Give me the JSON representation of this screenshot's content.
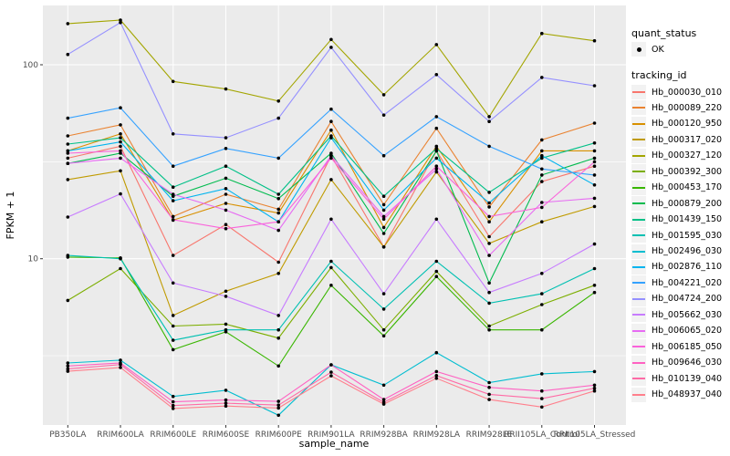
{
  "figure": {
    "panel_bg": "#EBEBEB",
    "grid_color": "#FFFFFF",
    "axis_text_color": "#4D4D4D",
    "title_text_color": "#000000",
    "tick_mark_color": "#333333",
    "legend_key_bg": "#F2F2F2",
    "marker_color": "#000000"
  },
  "chart_data": {
    "type": "line",
    "xlabel": "sample_name",
    "ylabel": "FPKM + 1",
    "y_scale": "log10",
    "y_tick_labels": [
      "100",
      "10"
    ],
    "y_tick_values": [
      100,
      10
    ],
    "y_minor_gridline_values": [
      31.62,
      3.162
    ],
    "ylim": [
      1.4,
      200
    ],
    "grid": "on",
    "legend_position": "right",
    "point_marker": "black-point",
    "categories": [
      "PB350LA",
      "RRIM600LA",
      "RRIM600LE",
      "RRIM600SE",
      "RRIM600PE",
      "RRIM901LA",
      "RRIM928BA",
      "RRIM928LA",
      "RRIM928LE",
      "RRII105LA_Control",
      "RRII105LA_Stressed"
    ],
    "legend": {
      "quant_status_title": "quant_status",
      "quant_ok_label": "OK",
      "tracking_title": "tracking_id"
    },
    "series": [
      {
        "name": "Hb_000030_010",
        "color": "#F8766D",
        "values": [
          33,
          38,
          10.4,
          15,
          9.6,
          34,
          11.5,
          36,
          13,
          25,
          30
        ]
      },
      {
        "name": "Hb_000089_220",
        "color": "#EA8331",
        "values": [
          43,
          49,
          16.5,
          21.5,
          18,
          51,
          19,
          47,
          18.5,
          41,
          50
        ]
      },
      {
        "name": "Hb_000120_950",
        "color": "#D89000",
        "values": [
          36,
          44,
          15.8,
          19.3,
          17.2,
          46,
          14.5,
          38,
          15.5,
          36,
          36
        ]
      },
      {
        "name": "Hb_000317_020",
        "color": "#C09B00",
        "values": [
          25.6,
          28.4,
          5.1,
          6.8,
          8.4,
          25.6,
          11.5,
          28,
          12,
          15.5,
          18.6
        ]
      },
      {
        "name": "Hb_000327_120",
        "color": "#A3A500",
        "values": [
          163,
          170,
          82,
          75,
          65,
          135,
          70,
          127,
          54,
          145,
          133
        ]
      },
      {
        "name": "Hb_000392_300",
        "color": "#7CAE00",
        "values": [
          6.1,
          8.9,
          4.5,
          4.6,
          3.9,
          9.0,
          4.3,
          8.6,
          4.5,
          5.8,
          7.3
        ]
      },
      {
        "name": "Hb_000453_170",
        "color": "#39B600",
        "values": [
          10.2,
          10.1,
          3.4,
          4.2,
          2.8,
          7.3,
          4.0,
          8.1,
          4.3,
          4.3,
          6.7
        ]
      },
      {
        "name": "Hb_000879_200",
        "color": "#00BB4E",
        "values": [
          31,
          35,
          21,
          26,
          20.4,
          35,
          13.5,
          36,
          7.5,
          27,
          33
        ]
      },
      {
        "name": "Hb_001439_150",
        "color": "#00C087",
        "values": [
          39,
          42,
          23.4,
          30,
          21.5,
          43,
          21,
          37,
          22,
          33,
          39.5
        ]
      },
      {
        "name": "Hb_001595_030",
        "color": "#00C0B2",
        "values": [
          10.4,
          10.0,
          3.8,
          4.3,
          4.3,
          9.7,
          5.5,
          9.7,
          5.9,
          6.6,
          8.9
        ]
      },
      {
        "name": "Hb_002496_030",
        "color": "#00BDD0",
        "values": [
          2.9,
          3.0,
          1.95,
          2.1,
          1.56,
          2.84,
          2.23,
          3.28,
          2.3,
          2.55,
          2.62
        ]
      },
      {
        "name": "Hb_002876_110",
        "color": "#00B4EF",
        "values": [
          36,
          40,
          19.9,
          23,
          15.5,
          42,
          17.8,
          33,
          19.4,
          34,
          24
        ]
      },
      {
        "name": "Hb_004221_020",
        "color": "#35A2FF",
        "values": [
          53,
          60,
          30,
          37,
          33,
          59,
          34,
          54,
          38,
          29,
          27
        ]
      },
      {
        "name": "Hb_004724_200",
        "color": "#9590FF",
        "values": [
          113,
          165,
          44,
          42,
          53,
          123,
          55,
          89,
          51,
          86,
          78
        ]
      },
      {
        "name": "Hb_005662_030",
        "color": "#C77CFF",
        "values": [
          16.4,
          21.6,
          7.5,
          6.4,
          5.1,
          16,
          6.6,
          16,
          6.7,
          8.4,
          11.9
        ]
      },
      {
        "name": "Hb_006065_020",
        "color": "#E76BF3",
        "values": [
          31,
          33,
          21.5,
          17.8,
          14.0,
          34,
          16.5,
          29,
          10.4,
          19.5,
          20.5
        ]
      },
      {
        "name": "Hb_006185_050",
        "color": "#FA62DB",
        "values": [
          35,
          36,
          15.9,
          14.3,
          15.5,
          33,
          16,
          30,
          16.5,
          18.4,
          31.6
        ]
      },
      {
        "name": "Hb_009646_030",
        "color": "#FF61C2",
        "values": [
          2.8,
          2.9,
          1.83,
          1.87,
          1.84,
          2.84,
          1.88,
          2.62,
          2.17,
          2.08,
          2.23
        ]
      },
      {
        "name": "Hb_010139_040",
        "color": "#FF6BA6",
        "values": [
          2.7,
          2.85,
          1.75,
          1.8,
          1.76,
          2.6,
          1.82,
          2.5,
          2.0,
          1.9,
          2.15
        ]
      },
      {
        "name": "Hb_048937_040",
        "color": "#FF7F8C",
        "values": [
          2.63,
          2.75,
          1.69,
          1.74,
          1.7,
          2.49,
          1.78,
          2.42,
          1.88,
          1.72,
          2.08
        ]
      }
    ]
  }
}
